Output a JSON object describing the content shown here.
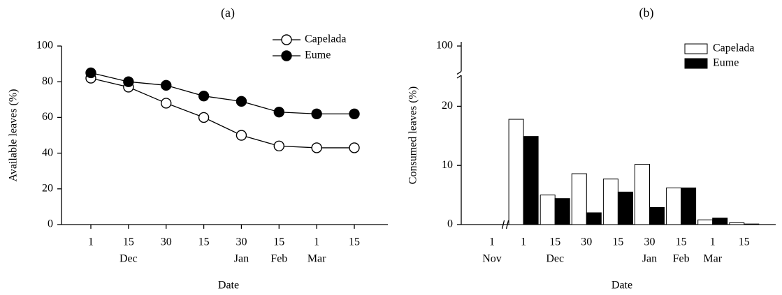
{
  "chart_data": [
    {
      "type": "line",
      "title": "(a)",
      "x_label": "Date",
      "y_label": "Available leaves (%)",
      "categories": [
        "1",
        "15",
        "30",
        "15",
        "30",
        "15",
        "1",
        "15"
      ],
      "category_groups": [
        null,
        "Dec",
        null,
        null,
        "Jan",
        "Feb",
        "Mar",
        null
      ],
      "series": [
        {
          "name": "Capelada",
          "color": "#ffffff",
          "values": [
            82,
            77,
            68,
            60,
            50,
            44,
            43,
            43
          ]
        },
        {
          "name": "Eume",
          "color": "#000000",
          "values": [
            85,
            80,
            78,
            72,
            69,
            63,
            62,
            62
          ]
        }
      ],
      "ylim": [
        0,
        100
      ],
      "yticks": [
        0,
        20,
        40,
        60,
        80,
        100
      ],
      "legend": "upper right"
    },
    {
      "type": "bar",
      "title": "(b)",
      "x_label": "Date",
      "y_label": "Consumed leaves (%)",
      "categories": [
        "1",
        "1",
        "15",
        "30",
        "15",
        "30",
        "15",
        "1",
        "15"
      ],
      "category_groups": [
        "Nov",
        null,
        "Dec",
        null,
        null,
        "Jan",
        "Feb",
        "Mar",
        null
      ],
      "series": [
        {
          "name": "Capelada",
          "color": "#ffffff",
          "values": [
            0,
            17.8,
            5.0,
            8.6,
            7.7,
            10.2,
            6.2,
            0.8,
            0.3
          ]
        },
        {
          "name": "Eume",
          "color": "#000000",
          "values": [
            0,
            14.9,
            4.4,
            2.0,
            5.5,
            2.9,
            6.2,
            1.1,
            0.1
          ]
        }
      ],
      "ylim": [
        0,
        100
      ],
      "yticks": [
        0,
        10,
        20,
        100
      ],
      "axis_break": [
        25,
        95
      ],
      "legend": "upper right"
    }
  ]
}
